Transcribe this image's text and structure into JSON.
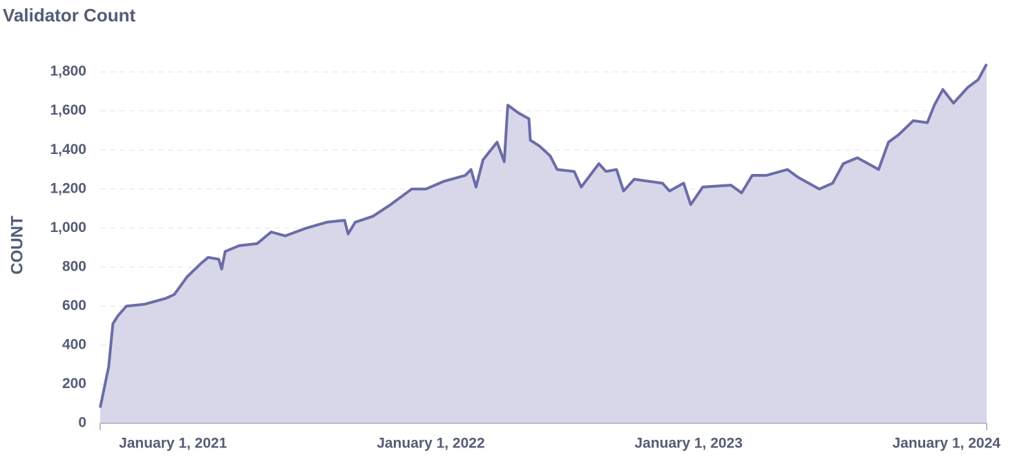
{
  "chart_data": {
    "type": "area",
    "title": "Validator Count",
    "y_label": "COUNT",
    "x": [
      "2020-09-20",
      "2020-10-02",
      "2020-10-08",
      "2020-10-15",
      "2020-10-27",
      "2020-11-22",
      "2020-12-22",
      "2021-01-03",
      "2021-01-21",
      "2021-02-10",
      "2021-02-20",
      "2021-03-07",
      "2021-03-11",
      "2021-03-16",
      "2021-04-05",
      "2021-04-30",
      "2021-05-20",
      "2021-06-09",
      "2021-07-09",
      "2021-08-07",
      "2021-09-01",
      "2021-09-06",
      "2021-09-16",
      "2021-10-11",
      "2021-11-05",
      "2021-12-05",
      "2021-12-25",
      "2022-01-20",
      "2022-02-19",
      "2022-02-27",
      "2022-03-06",
      "2022-03-16",
      "2022-04-05",
      "2022-04-15",
      "2022-04-20",
      "2022-05-05",
      "2022-05-20",
      "2022-05-22",
      "2022-06-04",
      "2022-06-19",
      "2022-06-29",
      "2022-07-23",
      "2022-08-02",
      "2022-08-27",
      "2022-09-06",
      "2022-09-21",
      "2022-10-01",
      "2022-10-16",
      "2022-11-25",
      "2022-12-05",
      "2022-12-25",
      "2023-01-04",
      "2023-01-21",
      "2023-03-02",
      "2023-03-17",
      "2023-04-01",
      "2023-04-21",
      "2023-05-21",
      "2023-06-05",
      "2023-07-05",
      "2023-07-24",
      "2023-08-08",
      "2023-08-28",
      "2023-09-17",
      "2023-09-27",
      "2023-10-11",
      "2023-10-26",
      "2023-11-15",
      "2023-12-05",
      "2023-12-15",
      "2023-12-27",
      "2024-01-11",
      "2024-01-31",
      "2024-02-15",
      "2024-02-27"
    ],
    "series": [
      {
        "name": "Validator Count",
        "color": "#6b6ca8",
        "area_color": "#d7d7e9",
        "values": [
          80,
          290,
          510,
          550,
          600,
          610,
          640,
          660,
          750,
          820,
          850,
          840,
          790,
          880,
          910,
          920,
          980,
          960,
          1000,
          1030,
          1040,
          970,
          1030,
          1060,
          1120,
          1200,
          1200,
          1240,
          1270,
          1300,
          1210,
          1350,
          1440,
          1340,
          1630,
          1590,
          1560,
          1450,
          1420,
          1370,
          1300,
          1290,
          1210,
          1330,
          1290,
          1300,
          1190,
          1250,
          1230,
          1190,
          1230,
          1120,
          1210,
          1220,
          1180,
          1270,
          1270,
          1300,
          1260,
          1200,
          1230,
          1330,
          1360,
          1320,
          1300,
          1440,
          1480,
          1550,
          1540,
          1630,
          1710,
          1640,
          1720,
          1760,
          1840
        ]
      }
    ],
    "xlim": [
      "2020-09-20",
      "2024-02-27"
    ],
    "xticks": [
      {
        "value": "2021-01-01",
        "label": "January 1, 2021"
      },
      {
        "value": "2022-01-01",
        "label": "January 1, 2022"
      },
      {
        "value": "2023-01-01",
        "label": "January 1, 2023"
      },
      {
        "value": "2024-01-01",
        "label": "January 1, 2024"
      }
    ],
    "ylim": [
      0,
      1850
    ],
    "yticks": [
      0,
      200,
      400,
      600,
      800,
      {
        "value": 1000,
        "label": "1,000"
      },
      {
        "value": 1200,
        "label": "1,200"
      },
      {
        "value": 1400,
        "label": "1,400"
      },
      {
        "value": 1600,
        "label": "1,600"
      },
      {
        "value": 1800,
        "label": "1,800"
      }
    ],
    "grid": true
  }
}
